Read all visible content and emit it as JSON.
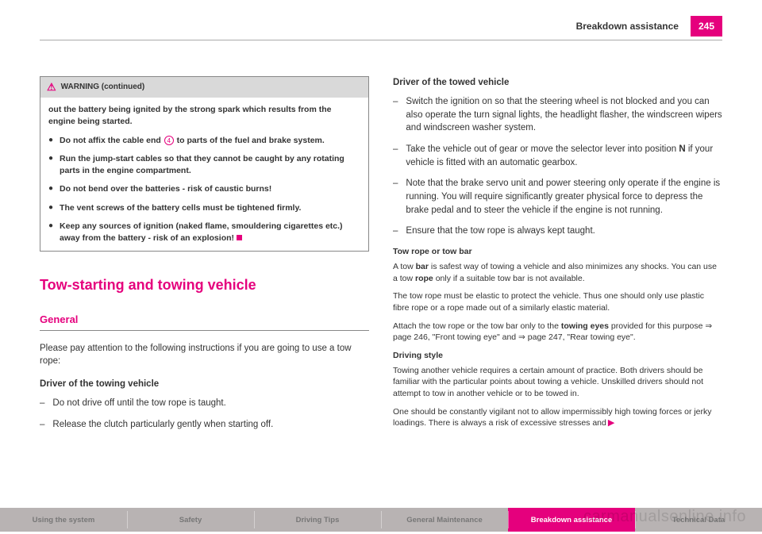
{
  "header": {
    "title": "Breakdown assistance",
    "page_number": "245"
  },
  "warning_box": {
    "header_label": "WARNING (continued)",
    "intro": "out the battery being ignited by the strong spark which results from the engine being started.",
    "bullets": [
      {
        "pre": "Do not affix the cable end ",
        "num": "4",
        "post": " to parts of the fuel and brake system."
      },
      {
        "text": "Run the jump-start cables so that they cannot be caught by any rotating parts in the engine compartment."
      },
      {
        "text": "Do not bend over the batteries - risk of caustic burns!"
      },
      {
        "text": "The vent screws of the battery cells must be tightened firmly."
      },
      {
        "text": "Keep any sources of ignition (naked flame, smouldering cigarettes etc.) away from the battery - risk of an explosion!"
      }
    ]
  },
  "section_title": "Tow-starting and towing vehicle",
  "subsection_title": "General",
  "intro_text": "Please pay attention to the following instructions if you are going to use a tow rope:",
  "towing_vehicle": {
    "heading": "Driver of the towing vehicle",
    "items": [
      "Do not drive off until the tow rope is taught.",
      "Release the clutch particularly gently when starting off."
    ]
  },
  "towed_vehicle": {
    "heading": "Driver of the towed vehicle",
    "items": [
      "Switch the ignition on so that the steering wheel is not blocked and you can also operate the turn signal lights, the headlight flasher, the windscreen wipers and windscreen washer system.",
      "Take the vehicle out of gear or move the selector lever into position N if your vehicle is fitted with an automatic gearbox.",
      "Note that the brake servo unit and power steering only operate if the engine is running. You will require significantly greater physical force to depress the brake pedal and to steer the vehicle if the engine is not running.",
      "Ensure that the tow rope is always kept taught."
    ]
  },
  "tow_rope": {
    "heading": "Tow rope or tow bar",
    "p1_pre": "A tow ",
    "p1_b1": "bar",
    "p1_mid": " is safest way of towing a vehicle and also minimizes any shocks. You can use a tow ",
    "p1_b2": "rope",
    "p1_post": " only if a suitable tow bar is not available.",
    "p2": "The tow rope must be elastic to protect the vehicle. Thus one should only use plastic fibre rope or a rope made out of a similarly elastic material.",
    "p3_pre": "Attach the tow rope or the tow bar only to the ",
    "p3_b": "towing eyes",
    "p3_post": " provided for this purpose ⇒ page 246, \"Front towing eye\" and ⇒ page 247, \"Rear towing eye\"."
  },
  "driving_style": {
    "heading": "Driving style",
    "p1": "Towing another vehicle requires a certain amount of practice. Both drivers should be familiar with the particular points about towing a vehicle. Unskilled drivers should not attempt to tow in another vehicle or to be towed in.",
    "p2": "One should be constantly vigilant not to allow impermissibly high towing forces or jerky loadings. There is always a risk of excessive stresses and"
  },
  "tabs": [
    "Using the system",
    "Safety",
    "Driving Tips",
    "General Maintenance",
    "Breakdown assistance",
    "Technical Data"
  ],
  "watermark": "carmanualsonline.info"
}
